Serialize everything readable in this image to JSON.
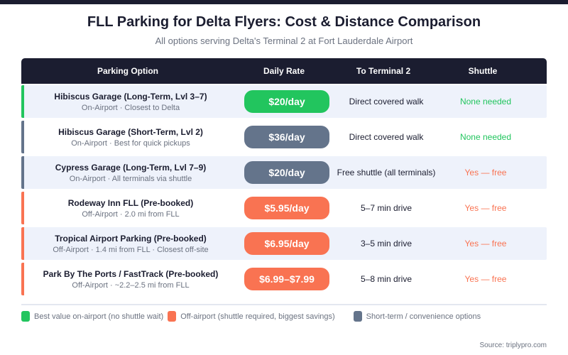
{
  "title": "FLL Parking for Delta Flyers: Cost & Distance Comparison",
  "subtitle": "All options serving Delta's Terminal 2 at Fort Lauderdale Airport",
  "colors": {
    "green": "#22c55e",
    "gray": "#64748b",
    "orange": "#f97352",
    "header": "#1b1d30"
  },
  "headers": [
    "Parking Option",
    "Daily Rate",
    "To Terminal 2",
    "Shuttle"
  ],
  "rows": [
    {
      "name": "Hibiscus Garage (Long-Term, Lvl 3–7)",
      "sub": "On-Airport · Closest to Delta",
      "rate": "$20/day",
      "terminal": "Direct covered walk",
      "shuttle": "None needed",
      "category": "green"
    },
    {
      "name": "Hibiscus Garage (Short-Term, Lvl 2)",
      "sub": "On-Airport · Best for quick pickups",
      "rate": "$36/day",
      "terminal": "Direct covered walk",
      "shuttle": "None needed",
      "category": "gray"
    },
    {
      "name": "Cypress Garage (Long-Term, Lvl 7–9)",
      "sub": "On-Airport · All terminals via shuttle",
      "rate": "$20/day",
      "terminal": "Free shuttle (all terminals)",
      "shuttle": "Yes — free",
      "category": "gray"
    },
    {
      "name": "Rodeway Inn FLL (Pre-booked)",
      "sub": "Off-Airport · 2.0 mi from FLL",
      "rate": "$5.95/day",
      "terminal": "5–7 min drive",
      "shuttle": "Yes — free",
      "category": "orange"
    },
    {
      "name": "Tropical Airport Parking (Pre-booked)",
      "sub": "Off-Airport · 1.4 mi from FLL · Closest off-site",
      "rate": "$6.95/day",
      "terminal": "3–5 min drive",
      "shuttle": "Yes — free",
      "category": "orange"
    },
    {
      "name": "Park By The Ports / FastTrack (Pre-booked)",
      "sub": "Off-Airport · ~2.2–2.5 mi from FLL",
      "rate": "$6.99–$7.99",
      "terminal": "5–8 min drive",
      "shuttle": "Yes — free",
      "category": "orange"
    }
  ],
  "legend": [
    {
      "label": "Best value on-airport (no shuttle wait)",
      "category": "green"
    },
    {
      "label": "Off-airport (shuttle required, biggest savings)",
      "category": "orange"
    },
    {
      "label": "Short-term / convenience options",
      "category": "gray"
    }
  ],
  "source": "Source: triplypro.com"
}
